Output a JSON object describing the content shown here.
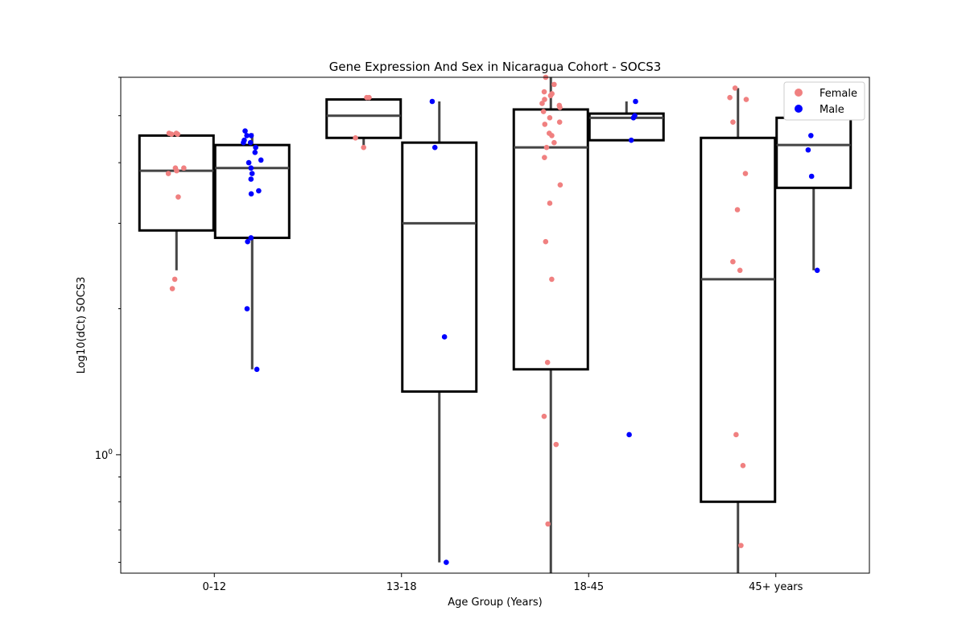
{
  "chart_data": {
    "type": "box",
    "title": "Gene Expression And Sex in Nicaragua Cohort - SOCS3",
    "xlabel": "Age Group (Years)",
    "ylabel": "Log10(dCt) SOCS3",
    "y_scale": "log",
    "ylim": [
      0.57,
      6.0
    ],
    "y_tick_labels": [
      {
        "value": 1.0,
        "label": "10^0"
      }
    ],
    "categories": [
      "0-12",
      "13-18",
      "18-45",
      "45+ years"
    ],
    "legend": {
      "position": "top-right",
      "entries": [
        {
          "name": "Female",
          "color": "#f08080"
        },
        {
          "name": "Male",
          "color": "#0000ff"
        }
      ]
    },
    "series": [
      {
        "name": "Female",
        "color": "#f08080",
        "boxes": [
          {
            "category": "0-12",
            "q1": 2.9,
            "median": 3.85,
            "q3": 4.55,
            "whisker_low": 2.4,
            "whisker_high": 4.6
          },
          {
            "category": "13-18",
            "q1": 4.5,
            "median": 5.0,
            "q3": 5.4,
            "whisker_low": 4.3,
            "whisker_high": 5.4
          },
          {
            "category": "18-45",
            "q1": 1.5,
            "median": 4.3,
            "q3": 5.15,
            "whisker_low": 0.57,
            "whisker_high": 6.0
          },
          {
            "category": "45+ years",
            "q1": 0.8,
            "median": 2.3,
            "q3": 4.5,
            "whisker_low": 0.57,
            "whisker_high": 5.7
          }
        ],
        "points": [
          {
            "category": "0-12",
            "values": [
              4.6,
              4.58,
              4.6,
              4.58,
              3.9,
              3.85,
              3.8,
              3.9,
              3.4,
              2.3,
              2.2
            ]
          },
          {
            "category": "13-18",
            "values": [
              5.45,
              5.45,
              4.5,
              4.3
            ]
          },
          {
            "category": "18-45",
            "values": [
              6.0,
              5.8,
              5.6,
              5.55,
              5.5,
              5.4,
              5.3,
              5.25,
              5.2,
              5.1,
              4.95,
              4.85,
              4.8,
              4.6,
              4.55,
              4.4,
              4.3,
              4.1,
              3.6,
              3.3,
              2.75,
              2.3,
              1.55,
              1.2,
              1.05,
              0.72
            ]
          },
          {
            "category": "45+ years",
            "values": [
              5.7,
              5.45,
              5.4,
              4.85,
              3.8,
              3.2,
              2.5,
              2.4,
              1.1,
              0.95,
              0.65
            ]
          }
        ]
      },
      {
        "name": "Male",
        "color": "#0000ff",
        "boxes": [
          {
            "category": "0-12",
            "q1": 2.8,
            "median": 3.9,
            "q3": 4.35,
            "whisker_low": 1.5,
            "whisker_high": 4.6
          },
          {
            "category": "13-18",
            "q1": 1.35,
            "median": 3.0,
            "q3": 4.4,
            "whisker_low": 0.6,
            "whisker_high": 5.35
          },
          {
            "category": "18-45",
            "q1": 4.45,
            "median": 4.95,
            "q3": 5.05,
            "whisker_low": 4.45,
            "whisker_high": 5.35
          },
          {
            "category": "45+ years",
            "q1": 3.55,
            "median": 4.35,
            "q3": 4.95,
            "whisker_low": 2.4,
            "whisker_high": 5.4
          }
        ],
        "points": [
          {
            "category": "0-12",
            "values": [
              4.65,
              4.55,
              4.55,
              4.45,
              4.4,
              4.4,
              4.3,
              4.2,
              4.05,
              4.0,
              3.9,
              3.8,
              3.7,
              3.5,
              3.45,
              2.8,
              2.75,
              2.0,
              1.5
            ]
          },
          {
            "category": "13-18",
            "values": [
              5.35,
              4.3,
              1.75,
              0.6
            ]
          },
          {
            "category": "18-45",
            "values": [
              5.35,
              5.0,
              4.95,
              4.45,
              1.1
            ]
          },
          {
            "category": "45+ years",
            "values": [
              5.4,
              5.3,
              5.0,
              4.55,
              4.25,
              3.75,
              2.4
            ]
          }
        ]
      }
    ]
  }
}
